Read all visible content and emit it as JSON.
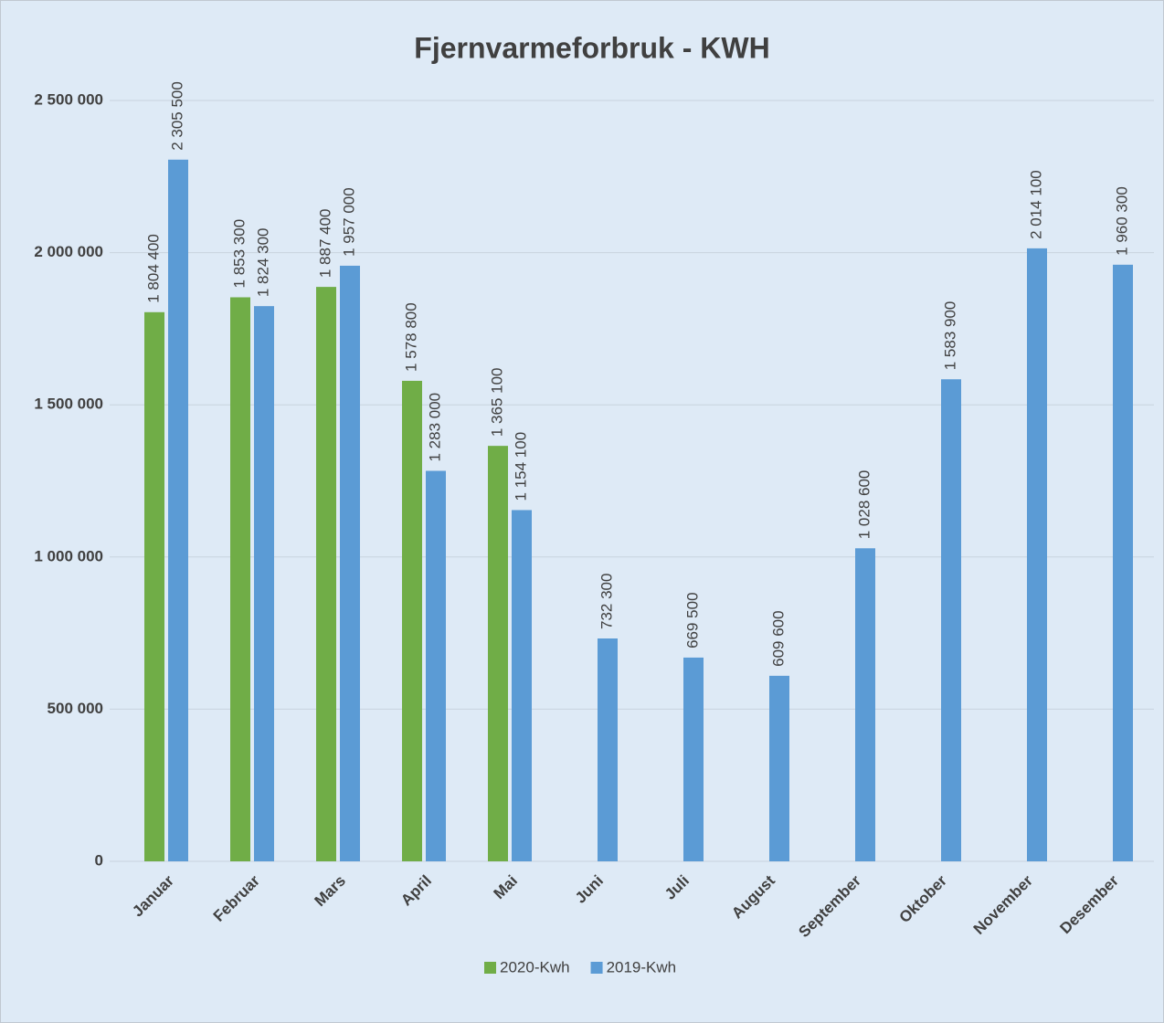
{
  "chart_data": {
    "type": "bar",
    "title": "Fjernvarmeforbruk - KWH",
    "categories": [
      "Januar",
      "Februar",
      "Mars",
      "April",
      "Mai",
      "Juni",
      "Juli",
      "August",
      "September",
      "Oktober",
      "November",
      "Desember"
    ],
    "series": [
      {
        "name": "2020-Kwh",
        "color": "#70ad47",
        "values": [
          1804400,
          1853300,
          1887400,
          1578800,
          1365100,
          null,
          null,
          null,
          null,
          null,
          null,
          null
        ],
        "value_labels": [
          "1 804 400",
          "1 853 300",
          "1 887 400",
          "1 578 800",
          "1 365 100",
          null,
          null,
          null,
          null,
          null,
          null,
          null
        ]
      },
      {
        "name": "2019-Kwh",
        "color": "#5b9bd5",
        "values": [
          2305500,
          1824300,
          1957000,
          1283000,
          1154100,
          732300,
          669500,
          609600,
          1028600,
          1583900,
          2014100,
          1960300
        ],
        "value_labels": [
          "2 305 500",
          "1 824 300",
          "1 957 000",
          "1 283 000",
          "1 154 100",
          "732 300",
          "669 500",
          "609 600",
          "1 028 600",
          "1 583 900",
          "2 014 100",
          "1 960 300"
        ]
      }
    ],
    "ylim": [
      0,
      2500000
    ],
    "yticks": [
      0,
      {
        "value": 500000,
        "label": "500 000"
      },
      {
        "value": 1000000,
        "label": "1 000 000"
      },
      {
        "value": 1500000,
        "label": "1 500 000"
      },
      {
        "value": 2000000,
        "label": "2 000 000"
      },
      {
        "value": 2500000,
        "label": "2 500 000"
      }
    ],
    "grid": true,
    "legend": "bottom"
  }
}
